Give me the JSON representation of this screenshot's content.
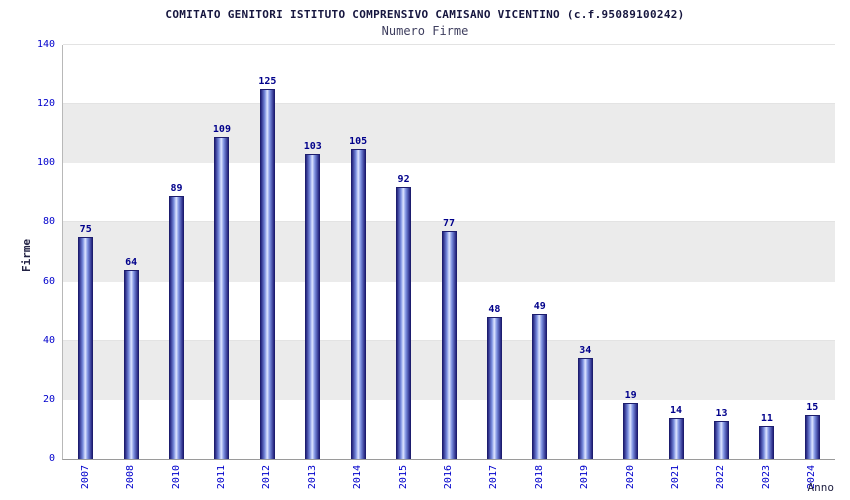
{
  "chart_data": {
    "type": "bar",
    "title": "COMITATO GENITORI ISTITUTO COMPRENSIVO CAMISANO VICENTINO (c.f.95089100242)",
    "subtitle": "Numero Firme",
    "xlabel": "Anno",
    "ylabel": "Firme",
    "categories": [
      "2007",
      "2008",
      "2010",
      "2011",
      "2012",
      "2013",
      "2014",
      "2015",
      "2016",
      "2017",
      "2018",
      "2019",
      "2020",
      "2021",
      "2022",
      "2023",
      "2024"
    ],
    "values": [
      75,
      64,
      89,
      109,
      125,
      103,
      105,
      92,
      77,
      48,
      49,
      34,
      19,
      14,
      13,
      11,
      15
    ],
    "ylim": [
      0,
      140
    ],
    "yticks": [
      0,
      20,
      40,
      60,
      80,
      100,
      120,
      140
    ],
    "grid": "alternating-horizontal-bands",
    "legend": "none",
    "colors": {
      "bar_dark": "#23237e",
      "bar_mid": "#7b8fe0",
      "bar_light": "#dde4ff",
      "tick_label": "#0000cc",
      "value_label": "#00008b",
      "band": "#ebebeb"
    }
  }
}
